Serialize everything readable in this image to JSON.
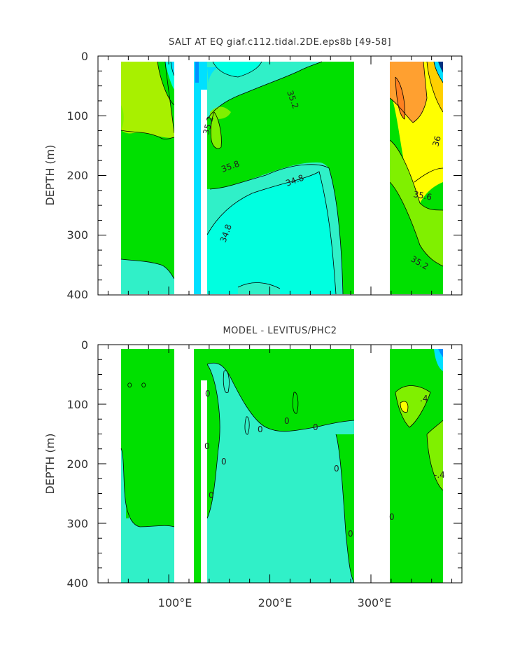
{
  "colors": {
    "green": "#00e000",
    "light_green": "#80f000",
    "lime": "#a8f000",
    "cyan": "#00ffe0",
    "aqua": "#30f0c8",
    "sky": "#00e0ff",
    "blue": "#0090ff",
    "navy": "#003080",
    "yellow": "#ffff00",
    "gold": "#ffd000",
    "orange": "#ffa030",
    "dark_orange": "#ff8020",
    "mint": "#20f090"
  },
  "chart_data": [
    {
      "type": "contour",
      "title": "SALT AT EQ giaf.c112.tidal.2DE.eps8b [49-58]",
      "ylabel": "DEPTH (m)",
      "xlabel": "",
      "xlim": [
        30,
        390
      ],
      "ylim": [
        400,
        0
      ],
      "y_ticks": [
        0,
        100,
        200,
        300,
        400
      ],
      "x_ticks": [
        100,
        200,
        300
      ],
      "contour_labels": [
        "35.2",
        "35.2",
        "35.8",
        "34.8",
        "34.8",
        "36",
        "35.6",
        "35.2"
      ]
    },
    {
      "type": "contour",
      "title": "MODEL - LEVITUS/PHC2",
      "ylabel": "DEPTH (m)",
      "xlabel": "",
      "xlim": [
        30,
        390
      ],
      "ylim": [
        400,
        0
      ],
      "y_ticks": [
        0,
        100,
        200,
        300,
        400
      ],
      "x_ticks": [
        100,
        200,
        300
      ],
      "x_tick_labels": [
        "100°E",
        "200°E",
        "300°E"
      ],
      "contour_labels": [
        "0",
        "0",
        "0",
        "0",
        "0",
        "0",
        "0",
        "0",
        "0",
        "0",
        ".4",
        "-.4"
      ]
    }
  ]
}
